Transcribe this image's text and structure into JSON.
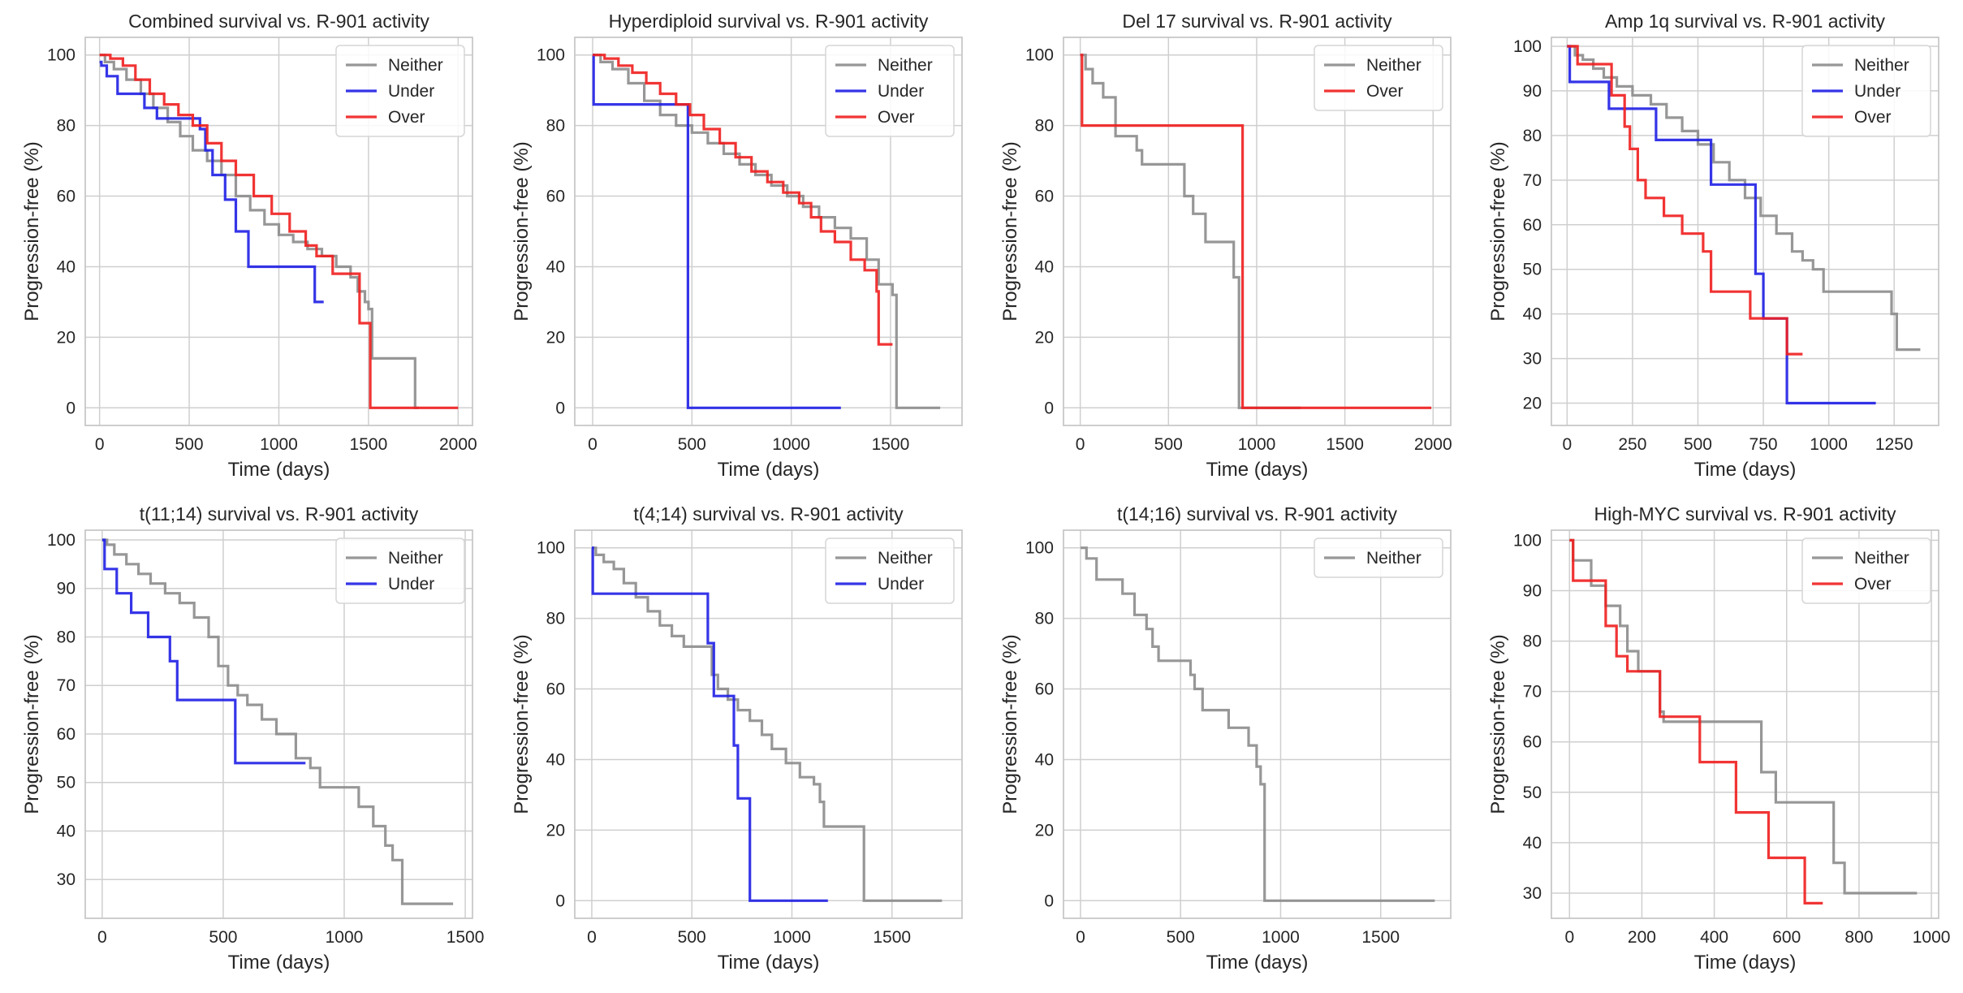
{
  "figure": {
    "colors": {
      "Neither": "#8c8c8c",
      "Under": "#1f1fe6",
      "Over": "#f01e1e",
      "grid": "#cfcfcf",
      "frame": "#c8c8c8"
    }
  },
  "chart_data": [
    {
      "type": "line",
      "step": true,
      "title": "Combined survival vs. R-901 activity",
      "xlabel": "Time (days)",
      "ylabel": "Progression-free (%)",
      "xlim": [
        -80,
        2080
      ],
      "ylim": [
        -5,
        105
      ],
      "xticks": [
        0,
        500,
        1000,
        1500,
        2000
      ],
      "yticks": [
        0,
        20,
        40,
        60,
        80,
        100
      ],
      "legend": "top-right",
      "series": [
        {
          "name": "Neither",
          "x": [
            0,
            30,
            80,
            150,
            230,
            300,
            380,
            450,
            520,
            600,
            680,
            760,
            840,
            920,
            1000,
            1080,
            1160,
            1240,
            1320,
            1400,
            1440,
            1480,
            1500,
            1520,
            1760,
            1780
          ],
          "y": [
            100,
            98,
            96,
            93,
            89,
            85,
            81,
            77,
            73,
            70,
            66,
            60,
            56,
            52,
            49,
            47,
            45,
            43,
            40,
            37,
            33,
            30,
            28,
            14,
            0,
            0
          ]
        },
        {
          "name": "Under",
          "x": [
            0,
            10,
            40,
            100,
            180,
            250,
            320,
            470,
            560,
            590,
            630,
            700,
            760,
            830,
            1200,
            1250
          ],
          "y": [
            98,
            97,
            94,
            89,
            89,
            85,
            82,
            82,
            79,
            73,
            66,
            59,
            50,
            40,
            30,
            30
          ]
        },
        {
          "name": "Over",
          "x": [
            0,
            60,
            130,
            200,
            280,
            360,
            440,
            520,
            600,
            680,
            760,
            860,
            960,
            1060,
            1150,
            1210,
            1300,
            1400,
            1450,
            1510,
            2000
          ],
          "y": [
            100,
            99,
            97,
            93,
            89,
            86,
            83,
            80,
            75,
            70,
            66,
            60,
            55,
            50,
            46,
            43,
            38,
            38,
            24,
            0,
            0
          ]
        }
      ]
    },
    {
      "type": "line",
      "step": true,
      "title": "Hyperdiploid survival vs. R-901 activity",
      "xlabel": "Time (days)",
      "ylabel": "Progression-free (%)",
      "xlim": [
        -90,
        1860
      ],
      "ylim": [
        -5,
        105
      ],
      "xticks": [
        0,
        500,
        1000,
        1500
      ],
      "yticks": [
        0,
        20,
        40,
        60,
        80,
        100
      ],
      "legend": "top-right",
      "series": [
        {
          "name": "Neither",
          "x": [
            0,
            40,
            100,
            180,
            260,
            340,
            420,
            500,
            580,
            660,
            740,
            820,
            900,
            980,
            1060,
            1140,
            1220,
            1300,
            1380,
            1440,
            1510,
            1530,
            1750
          ],
          "y": [
            100,
            98,
            96,
            92,
            87,
            83,
            80,
            78,
            75,
            72,
            69,
            66,
            63,
            60,
            57,
            54,
            51,
            48,
            42,
            35,
            32,
            0,
            0
          ]
        },
        {
          "name": "Under",
          "x": [
            0,
            5,
            480,
            1250
          ],
          "y": [
            100,
            86,
            0,
            0
          ]
        },
        {
          "name": "Over",
          "x": [
            0,
            60,
            130,
            200,
            270,
            340,
            420,
            490,
            560,
            640,
            720,
            800,
            880,
            960,
            1040,
            1100,
            1150,
            1220,
            1300,
            1370,
            1430,
            1440,
            1510
          ],
          "y": [
            100,
            99,
            97,
            95,
            92,
            89,
            86,
            83,
            79,
            75,
            71,
            67,
            64,
            61,
            58,
            54,
            50,
            47,
            42,
            39,
            33,
            18,
            18
          ]
        }
      ]
    },
    {
      "type": "line",
      "step": true,
      "title": "Del 17 survival vs. R-901 activity",
      "xlabel": "Time (days)",
      "ylabel": "Progression-free (%)",
      "xlim": [
        -95,
        2100
      ],
      "ylim": [
        -5,
        105
      ],
      "xticks": [
        0,
        500,
        1000,
        1500,
        2000
      ],
      "yticks": [
        0,
        20,
        40,
        60,
        80,
        100
      ],
      "legend": "top-right",
      "series": [
        {
          "name": "Neither",
          "x": [
            0,
            30,
            70,
            130,
            200,
            320,
            350,
            590,
            640,
            710,
            870,
            900,
            1250
          ],
          "y": [
            100,
            96,
            92,
            88,
            77,
            73,
            69,
            60,
            55,
            47,
            37,
            0,
            0
          ]
        },
        {
          "name": "Over",
          "x": [
            0,
            10,
            900,
            920,
            1990
          ],
          "y": [
            100,
            80,
            80,
            0,
            0
          ]
        }
      ]
    },
    {
      "type": "line",
      "step": true,
      "title": "Amp 1q survival vs. R-901 activity",
      "xlabel": "Time (days)",
      "ylabel": "Progression-free (%)",
      "xlim": [
        -60,
        1420
      ],
      "ylim": [
        15,
        102
      ],
      "xticks": [
        0,
        250,
        500,
        750,
        1000,
        1250
      ],
      "yticks": [
        20,
        30,
        40,
        50,
        60,
        70,
        80,
        90,
        100
      ],
      "legend": "top-right",
      "series": [
        {
          "name": "Neither",
          "x": [
            0,
            30,
            60,
            100,
            140,
            190,
            250,
            320,
            380,
            440,
            500,
            560,
            620,
            680,
            740,
            800,
            860,
            900,
            940,
            980,
            1240,
            1260,
            1350
          ],
          "y": [
            100,
            98,
            97,
            95,
            93,
            91,
            89,
            87,
            84,
            81,
            78,
            74,
            70,
            66,
            62,
            58,
            54,
            52,
            50,
            45,
            40,
            32,
            32
          ]
        },
        {
          "name": "Under",
          "x": [
            0,
            10,
            160,
            340,
            550,
            720,
            750,
            840,
            1180
          ],
          "y": [
            100,
            92,
            86,
            79,
            69,
            49,
            39,
            20,
            20
          ]
        },
        {
          "name": "Over",
          "x": [
            0,
            40,
            120,
            170,
            220,
            240,
            270,
            300,
            370,
            440,
            520,
            550,
            640,
            700,
            780,
            840,
            900
          ],
          "y": [
            100,
            96,
            96,
            89,
            82,
            77,
            70,
            66,
            62,
            58,
            54,
            45,
            45,
            39,
            39,
            31,
            31
          ]
        }
      ]
    },
    {
      "type": "line",
      "step": true,
      "title": "t(11;14) survival vs. R-901 activity",
      "xlabel": "Time (days)",
      "ylabel": "Progression-free (%)",
      "xlim": [
        -70,
        1530
      ],
      "ylim": [
        22,
        102
      ],
      "xticks": [
        0,
        500,
        1000,
        1500
      ],
      "yticks": [
        30,
        40,
        50,
        60,
        70,
        80,
        90,
        100
      ],
      "legend": "top-right",
      "series": [
        {
          "name": "Neither",
          "x": [
            0,
            20,
            50,
            100,
            150,
            200,
            260,
            320,
            380,
            440,
            480,
            520,
            560,
            600,
            660,
            720,
            800,
            860,
            900,
            1060,
            1120,
            1170,
            1200,
            1240,
            1450
          ],
          "y": [
            100,
            99,
            97,
            95,
            93,
            91,
            89,
            87,
            84,
            80,
            74,
            70,
            68,
            66,
            63,
            60,
            55,
            53,
            49,
            45,
            41,
            37,
            34,
            25,
            25
          ]
        },
        {
          "name": "Under",
          "x": [
            0,
            10,
            60,
            120,
            190,
            280,
            310,
            510,
            550,
            840
          ],
          "y": [
            100,
            94,
            89,
            85,
            80,
            75,
            67,
            67,
            54,
            54
          ]
        }
      ]
    },
    {
      "type": "line",
      "step": true,
      "title": "t(4;14) survival vs. R-901 activity",
      "xlabel": "Time (days)",
      "ylabel": "Progression-free (%)",
      "xlim": [
        -85,
        1850
      ],
      "ylim": [
        -5,
        105
      ],
      "xticks": [
        0,
        500,
        1000,
        1500
      ],
      "yticks": [
        0,
        20,
        40,
        60,
        80,
        100
      ],
      "legend": "top-right",
      "series": [
        {
          "name": "Neither",
          "x": [
            0,
            20,
            60,
            110,
            160,
            220,
            280,
            340,
            400,
            460,
            600,
            630,
            680,
            730,
            790,
            850,
            900,
            970,
            1040,
            1110,
            1140,
            1160,
            1350,
            1360,
            1750
          ],
          "y": [
            100,
            98,
            96,
            94,
            90,
            86,
            82,
            78,
            75,
            72,
            64,
            60,
            57,
            54,
            51,
            47,
            43,
            39,
            35,
            33,
            28,
            21,
            21,
            0,
            0
          ]
        },
        {
          "name": "Under",
          "x": [
            0,
            5,
            580,
            610,
            710,
            730,
            790,
            1180
          ],
          "y": [
            100,
            87,
            73,
            58,
            44,
            29,
            0,
            0
          ]
        }
      ]
    },
    {
      "type": "line",
      "step": true,
      "title": "t(14;16) survival vs. R-901 activity",
      "xlabel": "Time (days)",
      "ylabel": "Progression-free (%)",
      "xlim": [
        -85,
        1850
      ],
      "ylim": [
        -5,
        105
      ],
      "xticks": [
        0,
        500,
        1000,
        1500
      ],
      "yticks": [
        0,
        20,
        40,
        60,
        80,
        100
      ],
      "legend": "top-right",
      "series": [
        {
          "name": "Neither",
          "x": [
            0,
            30,
            80,
            210,
            270,
            330,
            360,
            390,
            550,
            570,
            610,
            740,
            840,
            880,
            900,
            920,
            1770
          ],
          "y": [
            100,
            97,
            91,
            87,
            81,
            77,
            72,
            68,
            64,
            60,
            54,
            49,
            44,
            38,
            33,
            0,
            0
          ]
        }
      ]
    },
    {
      "type": "line",
      "step": true,
      "title": "High-MYC survival vs. R-901 activity",
      "xlabel": "Time (days)",
      "ylabel": "Progression-free (%)",
      "xlim": [
        -50,
        1020
      ],
      "ylim": [
        25,
        102
      ],
      "xticks": [
        0,
        200,
        400,
        600,
        800,
        1000
      ],
      "yticks": [
        30,
        40,
        50,
        60,
        70,
        80,
        90,
        100
      ],
      "legend": "top-right",
      "series": [
        {
          "name": "Neither",
          "x": [
            0,
            10,
            60,
            100,
            140,
            160,
            190,
            240,
            250,
            260,
            480,
            530,
            570,
            710,
            730,
            760,
            960
          ],
          "y": [
            100,
            96,
            91,
            87,
            83,
            78,
            74,
            74,
            66,
            64,
            64,
            54,
            48,
            48,
            36,
            30,
            30
          ]
        },
        {
          "name": "Over",
          "x": [
            0,
            10,
            100,
            130,
            160,
            250,
            360,
            460,
            550,
            650,
            680,
            700
          ],
          "y": [
            100,
            92,
            83,
            77,
            74,
            65,
            56,
            46,
            37,
            28,
            28,
            28
          ]
        }
      ]
    }
  ]
}
